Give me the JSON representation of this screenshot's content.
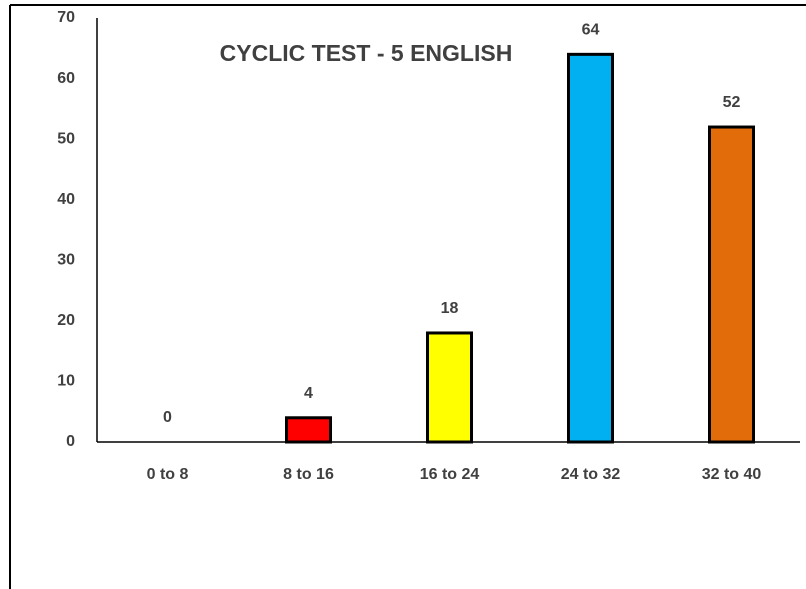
{
  "chart_data": {
    "type": "bar",
    "title": "CYCLIC TEST - 5 ENGLISH",
    "categories": [
      "0 to 8",
      "8 to 16",
      "16 to 24",
      "24 to 32",
      "32 to 40"
    ],
    "values": [
      0,
      4,
      18,
      64,
      52
    ],
    "colors": [
      "#4472c4",
      "#ff0000",
      "#ffff00",
      "#00b0f0",
      "#e36c0a"
    ],
    "ylim": [
      0,
      70
    ],
    "yticks": [
      0,
      10,
      20,
      30,
      40,
      50,
      60,
      70
    ],
    "grid": false
  }
}
